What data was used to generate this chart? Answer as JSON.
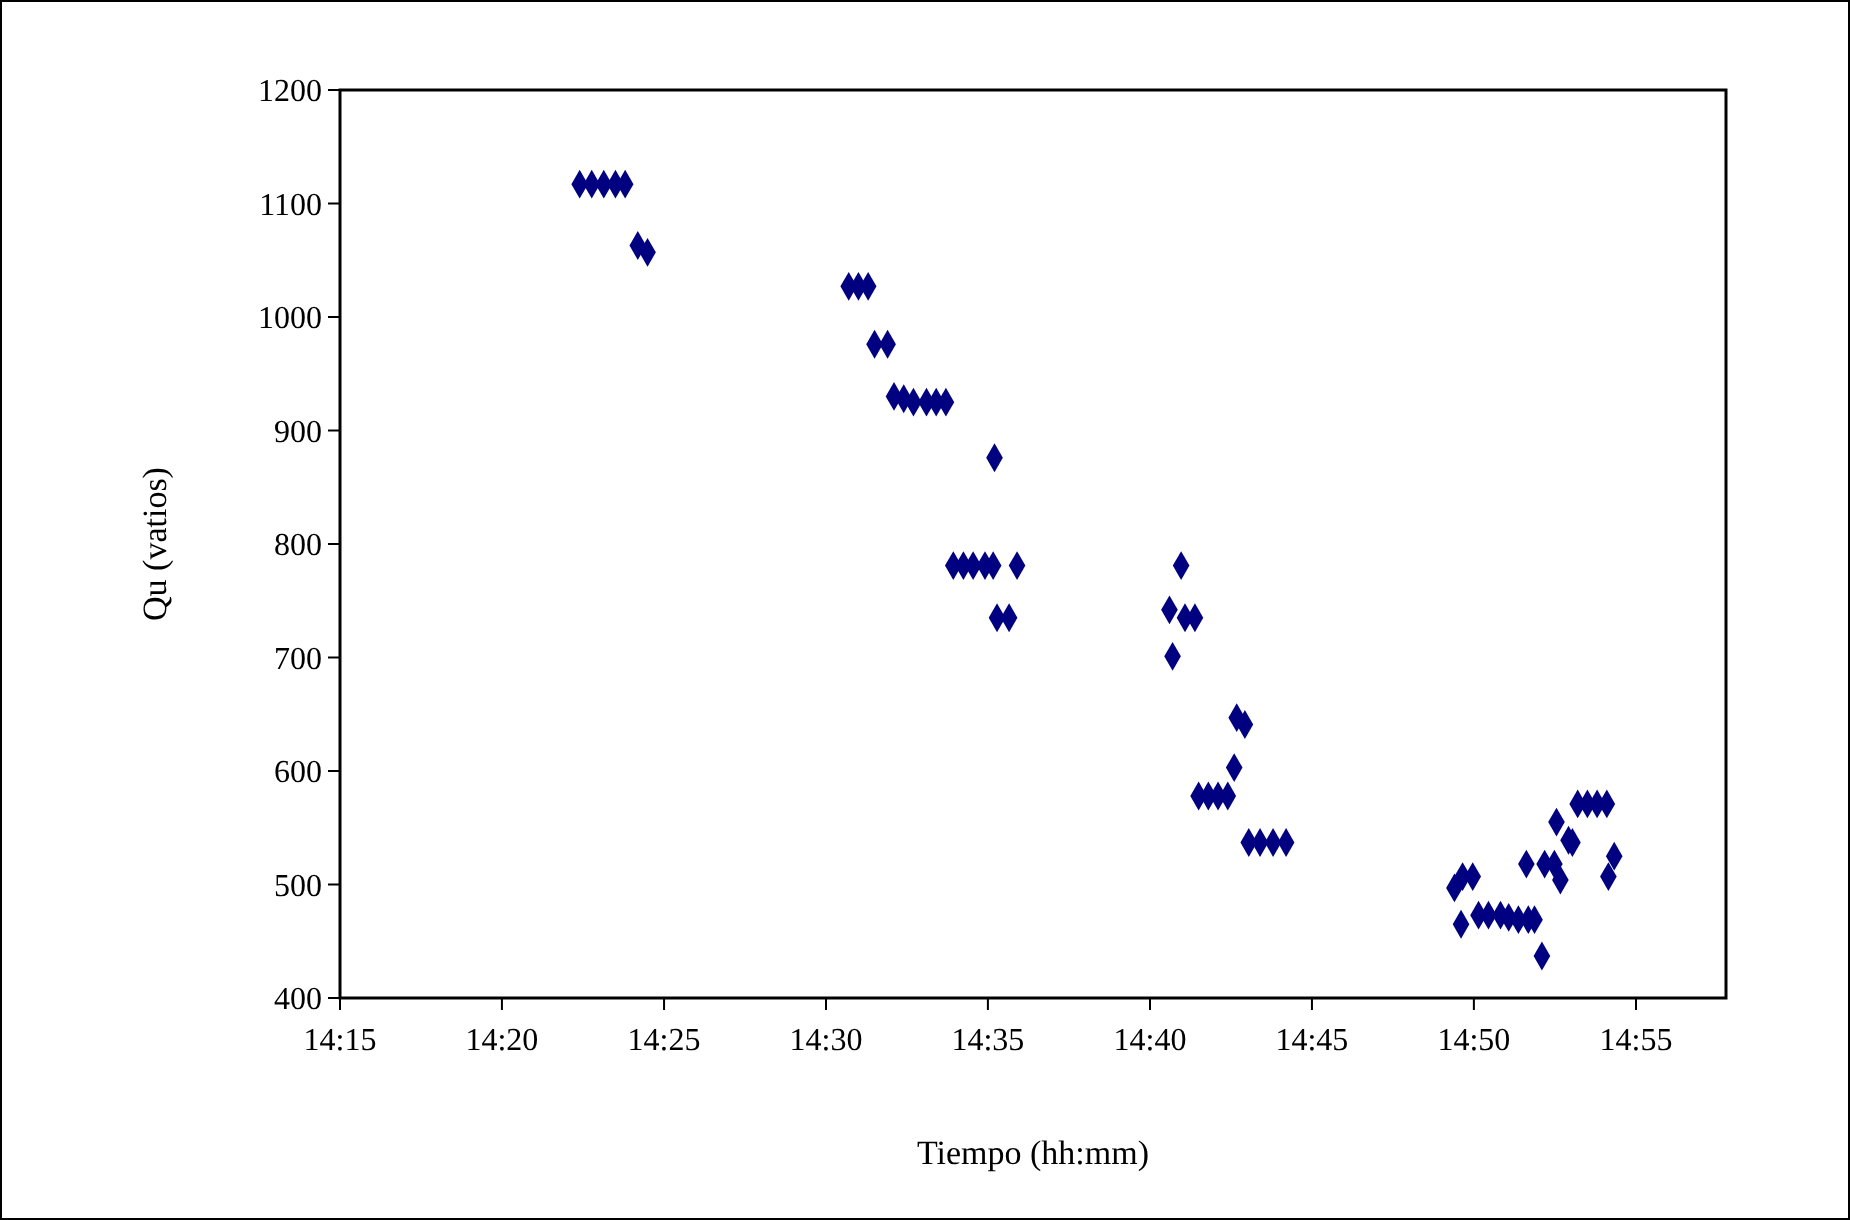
{
  "chart_data": {
    "type": "scatter",
    "xlabel": "Tiempo (hh:mm)",
    "ylabel": "Qu (vatios)",
    "marker": "diamond",
    "grid": false,
    "xlim": [
      14.25,
      14.963
    ],
    "xticks": [
      {
        "value": 14.25,
        "label": "14:15"
      },
      {
        "value": 14.3333,
        "label": "14:20"
      },
      {
        "value": 14.4167,
        "label": "14:25"
      },
      {
        "value": 14.5,
        "label": "14:30"
      },
      {
        "value": 14.5833,
        "label": "14:35"
      },
      {
        "value": 14.6667,
        "label": "14:40"
      },
      {
        "value": 14.75,
        "label": "14:45"
      },
      {
        "value": 14.8333,
        "label": "14:50"
      },
      {
        "value": 14.9167,
        "label": "14:55"
      }
    ],
    "ylim": [
      400,
      1200
    ],
    "yticks": [
      400,
      500,
      600,
      700,
      800,
      900,
      1000,
      1100,
      1200
    ],
    "series": [
      {
        "color": "#000080",
        "x": [
          14.3733,
          14.3795,
          14.3857,
          14.3917,
          14.3967,
          14.4032,
          14.4082,
          14.5117,
          14.5167,
          14.5217,
          14.525,
          14.5317,
          14.535,
          14.54,
          14.545,
          14.5517,
          14.5567,
          14.5617,
          14.5867,
          14.5655,
          14.5707,
          14.5757,
          14.5818,
          14.586,
          14.5983,
          14.588,
          14.5942,
          14.6827,
          14.6767,
          14.6847,
          14.6898,
          14.6783,
          14.7113,
          14.7155,
          14.71,
          14.6917,
          14.6967,
          14.7017,
          14.7067,
          14.7175,
          14.7233,
          14.73,
          14.7367,
          14.8233,
          14.8275,
          14.8327,
          14.8267,
          14.8357,
          14.8408,
          14.847,
          14.8512,
          14.8562,
          14.8613,
          14.8645,
          14.8603,
          14.8683,
          14.8697,
          14.8747,
          14.8778,
          14.8758,
          14.882,
          14.884,
          14.8867,
          14.8917,
          14.8967,
          14.9017,
          14.9055,
          14.9025
        ],
        "values": [
          1117,
          1117,
          1117,
          1117,
          1117,
          1063,
          1057,
          1027,
          1027,
          1027,
          976,
          976,
          930,
          928,
          925,
          925,
          925,
          925,
          876,
          781,
          781,
          781,
          781,
          781,
          781,
          735,
          735,
          781,
          742,
          735,
          735,
          701,
          647,
          641,
          603,
          578,
          578,
          578,
          578,
          537,
          537,
          537,
          537,
          497,
          507,
          507,
          465,
          473,
          473,
          473,
          471,
          469,
          469,
          469,
          518,
          437,
          518,
          518,
          504,
          555,
          539,
          537,
          571,
          571,
          571,
          571,
          525,
          507
        ]
      }
    ]
  }
}
